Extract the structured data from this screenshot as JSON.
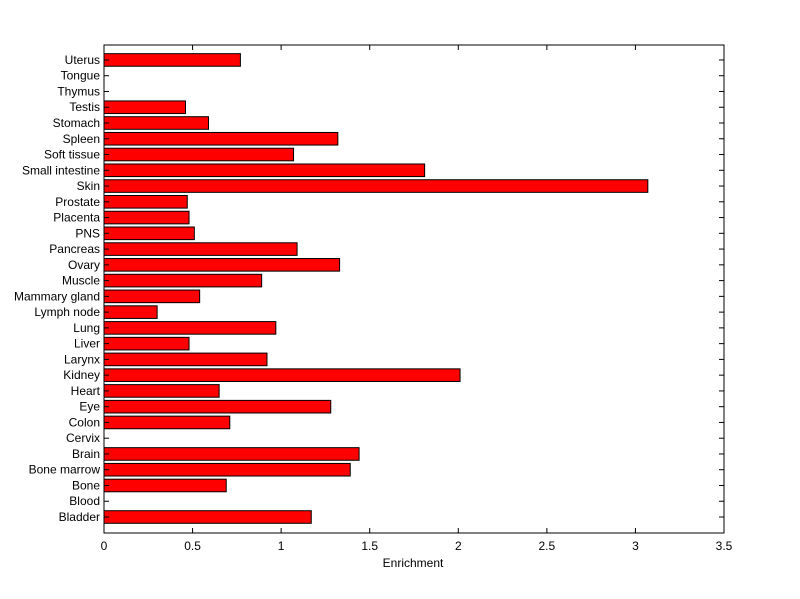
{
  "chart_data": {
    "type": "bar",
    "orientation": "horizontal",
    "title": "",
    "xlabel": "Enrichment",
    "ylabel": "",
    "xlim": [
      0,
      3.5
    ],
    "xticks": [
      0,
      0.5,
      1,
      1.5,
      2,
      2.5,
      3,
      3.5
    ],
    "xtick_labels": [
      "0",
      "0.5",
      "1",
      "1.5",
      "2",
      "2.5",
      "3",
      "3.5"
    ],
    "grid": false,
    "legend": "none",
    "bar_color": "#ff0000",
    "categories": [
      "Bladder",
      "Blood",
      "Bone",
      "Bone marrow",
      "Brain",
      "Cervix",
      "Colon",
      "Eye",
      "Heart",
      "Kidney",
      "Larynx",
      "Liver",
      "Lung",
      "Lymph node",
      "Mammary gland",
      "Muscle",
      "Ovary",
      "Pancreas",
      "PNS",
      "Placenta",
      "Prostate",
      "Skin",
      "Small intestine",
      "Soft tissue",
      "Spleen",
      "Stomach",
      "Testis",
      "Thymus",
      "Tongue",
      "Uterus"
    ],
    "values": [
      1.17,
      0,
      0.69,
      1.39,
      1.44,
      0,
      0.71,
      1.28,
      0.65,
      2.01,
      0.92,
      0.48,
      0.97,
      0.3,
      0.54,
      0.89,
      1.33,
      1.09,
      0.51,
      0.48,
      0.47,
      3.07,
      1.81,
      1.07,
      1.32,
      0.59,
      0.46,
      0,
      0,
      0.77
    ]
  }
}
